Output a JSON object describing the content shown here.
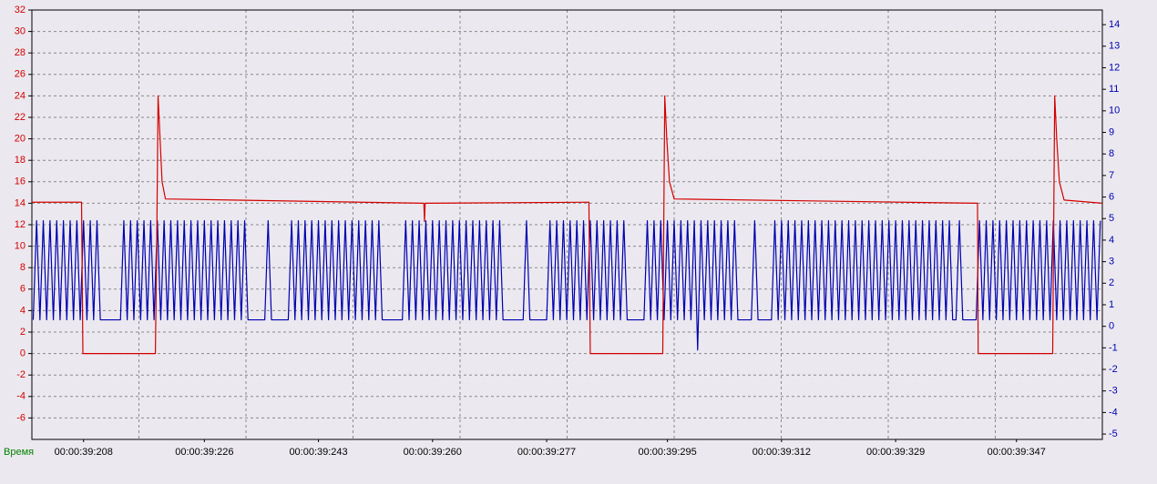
{
  "chart_data": {
    "type": "line",
    "x_label": "Время",
    "xlim": [
      39200.3,
      39359.8
    ],
    "xticks": [
      {
        "value": 39208,
        "label": "00:00:39:208"
      },
      {
        "value": 39226,
        "label": "00:00:39:226"
      },
      {
        "value": 39243,
        "label": "00:00:39:243"
      },
      {
        "value": 39260,
        "label": "00:00:39:260"
      },
      {
        "value": 39277,
        "label": "00:00:39:277"
      },
      {
        "value": 39295,
        "label": "00:00:39:295"
      },
      {
        "value": 39312,
        "label": "00:00:39:312"
      },
      {
        "value": 39329,
        "label": "00:00:39:329"
      },
      {
        "value": 39347,
        "label": "00:00:39:347"
      }
    ],
    "ylim": [
      -8,
      32
    ],
    "yticks": [
      -6,
      -4,
      -2,
      0,
      2,
      4,
      6,
      8,
      10,
      12,
      14,
      16,
      18,
      20,
      22,
      24,
      26,
      28,
      30,
      32
    ],
    "y2lim": [
      -5.25,
      14.68
    ],
    "y2ticks": [
      -5,
      -4,
      -3,
      -2,
      -1,
      0,
      1,
      2,
      3,
      4,
      5,
      6,
      7,
      8,
      9,
      10,
      11,
      12,
      13,
      14
    ],
    "grid": true,
    "series": [
      {
        "color": "#d40000",
        "x": [
          39200.3,
          39207.7,
          39207.9,
          39218.7,
          39218.9,
          39219.1,
          39219.4,
          39219.7,
          39220.2,
          39258.7,
          39258.8,
          39258.9,
          39283.3,
          39283.5,
          39294.3,
          39294.6,
          39294.9,
          39295.3,
          39296.0,
          39341.2,
          39341.3,
          39352.4,
          39352.7,
          39353.0,
          39353.4,
          39354.1,
          39359.8
        ],
        "values": [
          14.1,
          14.1,
          0,
          0,
          10,
          24,
          20,
          16,
          14.4,
          14,
          12.3,
          14,
          14.1,
          0,
          0,
          24,
          20,
          16,
          14.4,
          14,
          0,
          0,
          24,
          20,
          16,
          14.3,
          14
        ]
      },
      {
        "color": "#0000b0",
        "axis": "y2",
        "x": [
          39200.5,
          39201,
          39201.5,
          39202,
          39202.5,
          39203,
          39203.5,
          39204,
          39204.5,
          39205,
          39205.5,
          39206,
          39206.5,
          39207,
          39207.5,
          39208,
          39208.5,
          39209,
          39209.5,
          39210,
          39210.5,
          39211,
          39211.5,
          39212,
          39212.5,
          39213,
          39213.5,
          39214,
          39214.5,
          39215,
          39215.5,
          39216,
          39216.5,
          39217,
          39217.5,
          39218,
          39218.5,
          39219,
          39219.5,
          39220,
          39220.5,
          39221,
          39221.5,
          39222,
          39222.5,
          39223,
          39223.5,
          39224,
          39224.5,
          39225,
          39225.5,
          39226,
          39226.5,
          39227,
          39227.5,
          39228,
          39228.5,
          39229,
          39229.5,
          39230,
          39230.5,
          39231,
          39231.5,
          39232,
          39232.5,
          39233,
          39233.5,
          39234,
          39234.5,
          39235,
          39235.5,
          39236,
          39236.5,
          39237,
          39237.5,
          39238,
          39238.5,
          39239,
          39239.5,
          39240,
          39240.5,
          39241,
          39241.5,
          39242,
          39242.5,
          39243,
          39243.5,
          39244,
          39244.5,
          39245,
          39245.5,
          39246,
          39246.5,
          39247,
          39247.5,
          39248,
          39248.5,
          39249,
          39249.5,
          39250,
          39250.5,
          39251,
          39251.5,
          39252,
          39252.5,
          39253,
          39253.5,
          39254,
          39254.5,
          39255,
          39255.5,
          39256,
          39256.5,
          39257,
          39257.5,
          39258,
          39258.5,
          39259,
          39259.5,
          39260,
          39260.5,
          39261,
          39261.5,
          39262,
          39262.5,
          39263,
          39263.5,
          39264,
          39264.5,
          39265,
          39265.5,
          39266,
          39266.5,
          39267,
          39267.5,
          39268,
          39268.5,
          39269,
          39269.5,
          39270,
          39270.5,
          39271,
          39271.5,
          39272,
          39272.5,
          39273,
          39273.5,
          39274,
          39274.5,
          39275,
          39275.5,
          39276,
          39276.5,
          39277,
          39277.5,
          39278,
          39278.5,
          39279,
          39279.5,
          39280,
          39280.5,
          39281,
          39281.5,
          39282,
          39282.5,
          39283,
          39283.5,
          39284,
          39284.5,
          39285,
          39285.5,
          39286,
          39286.5,
          39287,
          39287.5,
          39288,
          39288.5,
          39289,
          39289.5,
          39290,
          39290.5,
          39291,
          39291.5,
          39292,
          39292.5,
          39293,
          39293.5,
          39294,
          39294.5,
          39295,
          39295.5,
          39296,
          39296.5,
          39297,
          39297.5,
          39298,
          39298.5,
          39299,
          39299.5,
          39300,
          39300.5,
          39301,
          39301.5,
          39302,
          39302.5,
          39303,
          39303.5,
          39304,
          39304.5,
          39305,
          39305.5,
          39306,
          39306.5,
          39307,
          39307.5,
          39308,
          39308.5,
          39309,
          39309.5,
          39310,
          39310.5,
          39311,
          39311.5,
          39312,
          39312.5,
          39313,
          39313.5,
          39314,
          39314.5,
          39315,
          39315.5,
          39316,
          39316.5,
          39317,
          39317.5,
          39318,
          39318.5,
          39319,
          39319.5,
          39320,
          39320.5,
          39321,
          39321.5,
          39322,
          39322.5,
          39323,
          39323.5,
          39324,
          39324.5,
          39325,
          39325.5,
          39326,
          39326.5,
          39327,
          39327.5,
          39328,
          39328.5,
          39329,
          39329.5,
          39330,
          39330.5,
          39331,
          39331.5,
          39332,
          39332.5,
          39333,
          39333.5,
          39334,
          39334.5,
          39335,
          39335.5,
          39336,
          39336.5,
          39337,
          39337.5,
          39338,
          39338.5,
          39339,
          39339.5,
          39340,
          39340.5,
          39341,
          39341.5,
          39342,
          39342.5,
          39343,
          39343.5,
          39344,
          39344.5,
          39345,
          39345.5,
          39346,
          39346.5,
          39347,
          39347.5,
          39348,
          39348.5,
          39349,
          39349.5,
          39350,
          39350.5,
          39351,
          39351.5,
          39352,
          39352.5,
          39353,
          39353.5,
          39354,
          39354.5,
          39355,
          39355.5,
          39356,
          39356.5,
          39357,
          39357.5,
          39358,
          39358.5,
          39359,
          39359.5
        ],
        "values": [
          0.3,
          4.9,
          0.3,
          4.9,
          0.3,
          4.9,
          0.3,
          4.9,
          0.3,
          4.9,
          0.3,
          4.9,
          0.3,
          4.9,
          0.3,
          4.9,
          0.3,
          4.9,
          0.3,
          4.9,
          0.3,
          0.3,
          0.3,
          0.3,
          0.3,
          0.3,
          0.3,
          4.9,
          0.3,
          4.9,
          0.3,
          4.9,
          0.3,
          4.9,
          0.3,
          4.9,
          0.3,
          4.9,
          0.3,
          4.9,
          0.3,
          4.9,
          0.3,
          4.9,
          0.3,
          4.9,
          0.3,
          4.9,
          0.3,
          4.9,
          0.3,
          4.9,
          0.3,
          4.9,
          0.3,
          4.9,
          0.3,
          4.9,
          0.3,
          4.9,
          0.3,
          4.9,
          0.3,
          4.9,
          0.3,
          0.3,
          0.3,
          0.3,
          0.3,
          0.3,
          4.9,
          0.3,
          0.3,
          0.3,
          0.3,
          0.3,
          0.3,
          4.9,
          0.3,
          4.9,
          0.3,
          4.9,
          0.3,
          4.9,
          0.3,
          4.9,
          0.3,
          4.9,
          0.3,
          4.9,
          0.3,
          4.9,
          0.3,
          4.9,
          0.3,
          4.9,
          0.3,
          4.9,
          0.3,
          4.9,
          0.3,
          4.9,
          0.3,
          4.9,
          0.3,
          0.3,
          0.3,
          0.3,
          0.3,
          0.3,
          0.3,
          4.9,
          0.3,
          4.9,
          0.3,
          4.9,
          0.3,
          4.9,
          0.3,
          4.9,
          0.3,
          4.9,
          0.3,
          4.9,
          0.3,
          4.9,
          0.3,
          4.9,
          0.3,
          4.9,
          0.3,
          4.9,
          0.3,
          4.9,
          0.3,
          4.9,
          0.3,
          4.9,
          0.3,
          4.9,
          0.3,
          0.3,
          0.3,
          0.3,
          0.3,
          0.3,
          0.3,
          4.9,
          0.3,
          0.3,
          0.3,
          0.3,
          0.3,
          0.3,
          4.9,
          0.3,
          4.9,
          0.3,
          4.9,
          0.3,
          4.9,
          0.3,
          4.9,
          0.3,
          4.9,
          0.3,
          4.9,
          0.3,
          4.9,
          0.3,
          4.9,
          0.3,
          4.9,
          0.3,
          4.9,
          0.3,
          4.9,
          0.3,
          0.3,
          0.3,
          0.3,
          0.3,
          0.3,
          4.9,
          0.3,
          4.9,
          0.3,
          4.9,
          0.3,
          4.9,
          0.3,
          4.9,
          0.3,
          4.9,
          0.3,
          4.9,
          0.3,
          4.9,
          -1.1,
          4.9,
          0.3,
          4.9,
          0.3,
          4.9,
          0.3,
          4.9,
          0.3,
          4.9,
          0.3,
          4.9,
          0.3,
          0.3,
          0.3,
          0.3,
          0.3,
          4.9,
          0.3,
          0.3,
          0.3,
          0.3,
          0.3,
          4.9,
          0.3,
          4.9,
          0.3,
          4.9,
          0.3,
          4.9,
          0.3,
          4.9,
          0.3,
          4.9,
          0.3,
          4.9,
          0.3,
          4.9,
          0.3,
          4.9,
          0.3,
          4.9,
          0.3,
          4.9,
          0.3,
          4.9,
          0.3,
          4.9,
          0.3,
          4.9,
          0.3,
          4.9,
          0.3,
          4.9,
          0.3,
          4.9,
          0.3,
          4.9,
          0.3,
          4.9,
          0.3,
          4.9,
          0.3,
          4.9,
          0.3,
          4.9,
          0.3,
          4.9,
          0.3,
          4.9,
          0.3,
          4.9,
          0.3,
          4.9,
          0.3,
          4.9,
          0.3,
          0.3,
          4.9,
          0.3,
          0.3,
          0.3,
          0.3,
          0.3,
          4.9,
          0.3,
          4.9,
          0.3,
          4.9,
          0.3,
          4.9,
          0.3,
          4.9,
          0.3,
          4.9,
          0.3,
          4.9,
          0.3,
          4.9,
          0.3,
          4.9,
          0.3,
          4.9,
          0.3,
          4.9,
          0.3,
          4.9,
          0.3,
          4.9,
          0.3,
          4.9,
          0.3,
          4.9,
          0.3,
          4.9,
          0.3,
          4.9,
          0.3,
          4.9,
          0.3,
          4.9
        ]
      }
    ]
  }
}
